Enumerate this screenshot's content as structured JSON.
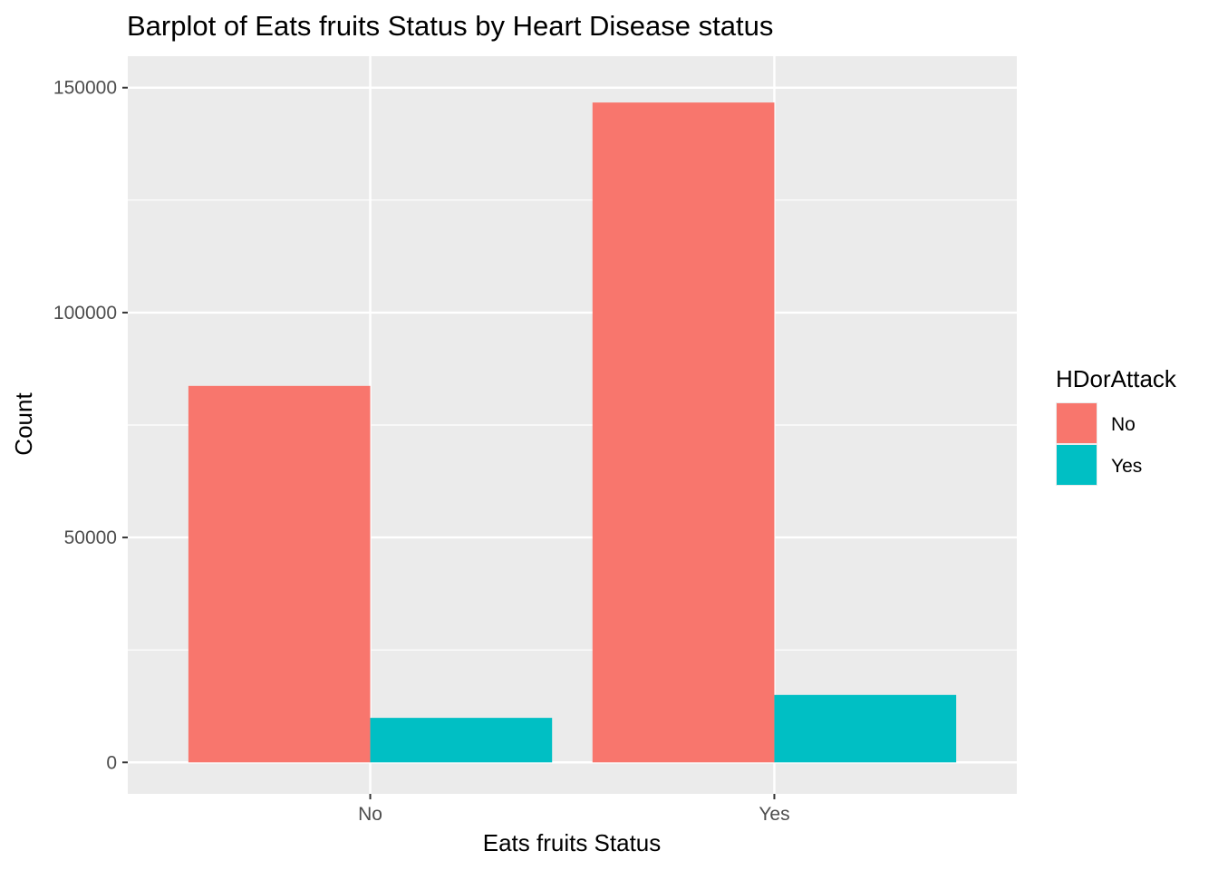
{
  "chart_data": {
    "type": "bar",
    "title": "Barplot of Eats fruits Status by Heart Disease status",
    "xlabel": "Eats fruits Status",
    "ylabel": "Count",
    "categories": [
      "No",
      "Yes"
    ],
    "series": [
      {
        "name": "No",
        "color": "#F8766D",
        "values": [
          83700,
          146700
        ]
      },
      {
        "name": "Yes",
        "color": "#00BFC4",
        "values": [
          9900,
          15000
        ]
      }
    ],
    "ylim": [
      -7000,
      157000
    ],
    "yticks": [
      0,
      50000,
      100000,
      150000
    ],
    "ytick_labels": [
      "0",
      "50000",
      "100000",
      "150000"
    ],
    "grid": true,
    "legend": {
      "title": "HDorAttack",
      "position": "right"
    },
    "panel_background": "#EBEBEB",
    "grid_color": "#FFFFFF"
  }
}
